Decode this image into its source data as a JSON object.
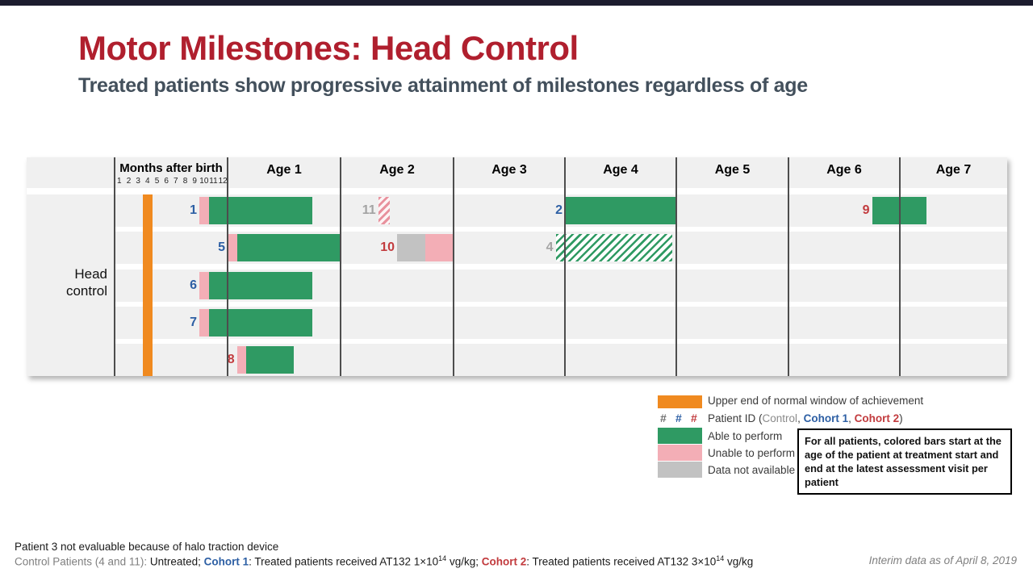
{
  "slide": {
    "title": "Motor Milestones: Head Control",
    "subtitle": "Treated patients show progressive attainment of milestones regardless of age"
  },
  "chart_data": {
    "type": "timeline-gantt",
    "row_label": "Head control",
    "months_header": "Months after birth",
    "month_ticks": [
      "1",
      "2",
      "3",
      "4",
      "5",
      "6",
      "7",
      "8",
      "9",
      "10",
      "11",
      "12"
    ],
    "age_labels": [
      "Age 1",
      "Age 2",
      "Age 3",
      "Age 4",
      "Age 5",
      "Age 6",
      "Age 7"
    ],
    "axis_unit": "months of age, 0 to 96",
    "normal_window": {
      "from": 3,
      "to": 4
    },
    "patients": [
      {
        "id": "1",
        "cohort": "cohort1",
        "row": 0,
        "segments": [
          {
            "status": "unable",
            "from": 9,
            "to": 10
          },
          {
            "status": "able",
            "from": 10,
            "to": 21
          }
        ]
      },
      {
        "id": "11",
        "cohort": "control",
        "row": 0,
        "segments": [
          {
            "status": "unable_hatched",
            "from": 28,
            "to": 29.2
          }
        ]
      },
      {
        "id": "2",
        "cohort": "cohort1",
        "row": 0,
        "segments": [
          {
            "status": "able",
            "from": 48,
            "to": 60
          }
        ]
      },
      {
        "id": "9",
        "cohort": "cohort2",
        "row": 0,
        "segments": [
          {
            "status": "able",
            "from": 81,
            "to": 87
          }
        ]
      },
      {
        "id": "5",
        "cohort": "cohort1",
        "row": 1,
        "segments": [
          {
            "status": "unable",
            "from": 12,
            "to": 13
          },
          {
            "status": "able",
            "from": 13,
            "to": 24
          }
        ]
      },
      {
        "id": "10",
        "cohort": "cohort2",
        "row": 1,
        "segments": [
          {
            "status": "na",
            "from": 30,
            "to": 33
          },
          {
            "status": "unable",
            "from": 33,
            "to": 36
          }
        ]
      },
      {
        "id": "4",
        "cohort": "control",
        "row": 1,
        "segments": [
          {
            "status": "able_hatched",
            "from": 47,
            "to": 59.6
          }
        ]
      },
      {
        "id": "6",
        "cohort": "cohort1",
        "row": 2,
        "segments": [
          {
            "status": "unable",
            "from": 9,
            "to": 10
          },
          {
            "status": "able",
            "from": 10,
            "to": 21
          }
        ]
      },
      {
        "id": "7",
        "cohort": "cohort1",
        "row": 3,
        "segments": [
          {
            "status": "unable",
            "from": 9,
            "to": 10
          },
          {
            "status": "able",
            "from": 10,
            "to": 21
          }
        ]
      },
      {
        "id": "8",
        "cohort": "cohort2",
        "row": 4,
        "segments": [
          {
            "status": "unable",
            "from": 13,
            "to": 14
          },
          {
            "status": "able",
            "from": 14,
            "to": 19
          }
        ]
      }
    ]
  },
  "legend": {
    "normal_window": "Upper end of normal window of achievement",
    "hash": "#",
    "patient_id_prefix": "Patient ID (",
    "patient_id_control": "Control",
    "sep1": ", ",
    "patient_id_cohort1": "Cohort 1",
    "sep2": ", ",
    "patient_id_cohort2": "Cohort 2",
    "patient_id_suffix": ")",
    "able": "Able to perform",
    "unable": "Unable to perform",
    "na": "Data not available",
    "note": "For all patients, colored bars start at the age of the patient at treatment start and end at the latest assessment visit per patient"
  },
  "footnotes": {
    "line1": "Patient 3 not evaluable because of halo traction device",
    "control_label": "Control Patients (4 and 11):",
    "control_rest": " Untreated; ",
    "cohort1_label": "Cohort 1",
    "cohort1_pre": ": Treated patients received AT132 1×10",
    "cohort1_sup": "14",
    "cohort1_post": " vg/kg; ",
    "cohort2_label": "Cohort 2",
    "cohort2_pre": ": Treated patients received AT132 3×10",
    "cohort2_sup": "14",
    "cohort2_post": " vg/kg",
    "interim": "Interim data as of April 8, 2019"
  },
  "colors": {
    "top_bar": "#1c1c2e",
    "title_red": "#b01f2e",
    "subtitle_gray": "#43505c",
    "band": "#f0f0f0",
    "grid": "#4d4d4d",
    "orange": "#f08a20",
    "green": "#2f9a63",
    "pink": "#f3aeb6",
    "na_gray": "#c2c2c2",
    "blue": "#2d5fa4",
    "red": "#c23b3e",
    "control_gray": "#a3a3a3",
    "footer_gray": "#7f7f7f"
  }
}
